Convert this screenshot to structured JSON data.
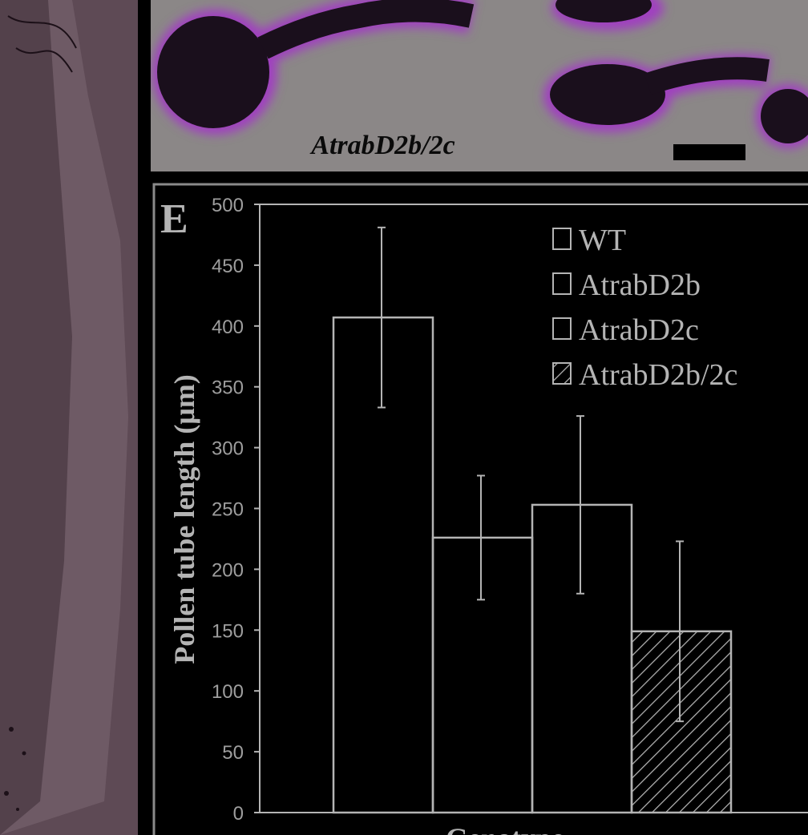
{
  "micrograph": {
    "label": "AtrabD2b/2c",
    "background_color": "#8b8787",
    "tube_color": "#1a0f1c",
    "halo_color": "#a040c0"
  },
  "left_strip": {
    "background_color": "#5a4650"
  },
  "chart_data": {
    "type": "bar",
    "panel_label": "E",
    "ylabel": "Pollen tube length  (μm)",
    "xlabel": "Genotype",
    "ylim": [
      0,
      500
    ],
    "yticks": [
      0,
      50,
      100,
      150,
      200,
      250,
      300,
      350,
      400,
      450,
      500
    ],
    "categories": [
      "WT",
      "AtrabD2b",
      "AtrabD2c",
      "AtrabD2b/2c"
    ],
    "values": [
      407,
      226,
      253,
      149
    ],
    "errors": [
      74,
      51,
      73,
      74
    ],
    "fills": [
      "none",
      "none",
      "none",
      "hatch"
    ],
    "legend_position": "top-right",
    "grid": false,
    "colors": {
      "background": "#000000",
      "foreground": "#b4b4b4",
      "tick_text": "#9e9e9e",
      "frame": "#8a8a8a"
    }
  }
}
